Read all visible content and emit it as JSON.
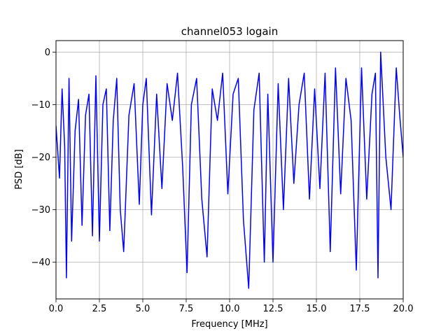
{
  "chart_data": {
    "type": "line",
    "title": "channel053 logain",
    "xlabel": "Frequency [MHz]",
    "ylabel": "PSD [dB]",
    "xlim": [
      0,
      20
    ],
    "ylim": [
      -47,
      2.2
    ],
    "xticks": [
      0,
      2.5,
      5,
      7.5,
      10,
      12.5,
      15,
      17.5,
      20
    ],
    "xtick_labels": [
      "0.0",
      "2.5",
      "5.0",
      "7.5",
      "10.0",
      "12.5",
      "15.0",
      "17.5",
      "20.0"
    ],
    "yticks": [
      0,
      -10,
      -20,
      -30,
      -40
    ],
    "ytick_labels": [
      "0",
      "−10",
      "−20",
      "−30",
      "−40"
    ],
    "grid": true,
    "series": [
      {
        "color": "#0000ff",
        "x": [
          0.0,
          0.2,
          0.35,
          0.5,
          0.6,
          0.75,
          0.9,
          1.1,
          1.3,
          1.5,
          1.7,
          1.9,
          2.1,
          2.3,
          2.5,
          2.7,
          2.9,
          3.1,
          3.3,
          3.5,
          3.7,
          3.9,
          4.2,
          4.5,
          4.8,
          5.0,
          5.2,
          5.5,
          5.8,
          6.1,
          6.4,
          6.7,
          7.0,
          7.3,
          7.55,
          7.8,
          8.1,
          8.4,
          8.7,
          9.0,
          9.3,
          9.6,
          9.9,
          10.2,
          10.5,
          10.8,
          11.1,
          11.4,
          11.7,
          12.0,
          12.2,
          12.5,
          12.8,
          13.1,
          13.4,
          13.7,
          14.0,
          14.3,
          14.6,
          14.9,
          15.2,
          15.5,
          15.8,
          16.1,
          16.4,
          16.7,
          17.0,
          17.3,
          17.6,
          17.9,
          18.2,
          18.4,
          18.55,
          18.7,
          19.0,
          19.3,
          19.6,
          19.8,
          20.0
        ],
        "y": [
          -14,
          -24,
          -7,
          -18,
          -43,
          -5,
          -36,
          -15,
          -9,
          -33,
          -12,
          -8,
          -35,
          -4.5,
          -36,
          -10,
          -7,
          -34,
          -13,
          -5,
          -30,
          -38,
          -12,
          -6,
          -29,
          -10,
          -5,
          -31,
          -8,
          -26,
          -6,
          -13,
          -4,
          -22,
          -42,
          -10,
          -5,
          -28,
          -39,
          -7,
          -13,
          -4,
          -27,
          -8,
          -5,
          -32,
          -45,
          -11,
          -4,
          -40,
          -8,
          -40,
          -6,
          -30,
          -5,
          -25,
          -10,
          -4,
          -28,
          -7,
          -26,
          -4,
          -38,
          -3,
          -27,
          -5,
          -13,
          -41.5,
          -3,
          -28,
          -8,
          -4,
          -43,
          0,
          -20,
          -30,
          -3,
          -12,
          -20
        ]
      }
    ]
  }
}
